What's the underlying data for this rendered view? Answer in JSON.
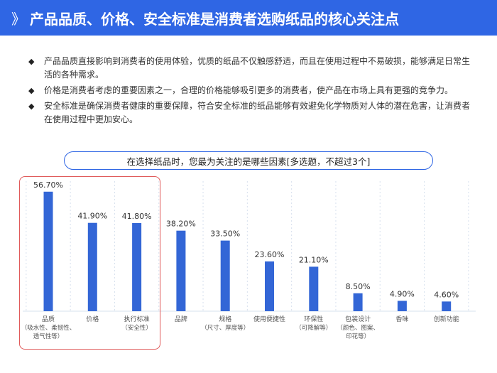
{
  "header": {
    "marker": "》",
    "title": "产品品质、价格、安全标准是消费者选购纸品的核心关注点"
  },
  "bullets": [
    {
      "icon": "diamond-bullet-icon",
      "symbol": "◆",
      "text": "产品品质直接影响到消费者的使用体验，优质的纸品不仅触感舒适，而且在使用过程中不易破损，能够满足日常生活的各种需求。"
    },
    {
      "icon": "diamond-bullet-icon",
      "symbol": "◆",
      "text": "价格是消费者考虑的重要因素之一，合理的价格能够吸引更多的消费者，使产品在市场上具有更强的竞争力。"
    },
    {
      "icon": "diamond-bullet-icon",
      "symbol": "◆",
      "text": "安全标准是确保消费者健康的重要保障，符合安全标准的纸品能够有效避免化学物质对人体的潜在危害，让消费者在使用过程中更加安心。"
    }
  ],
  "colors": {
    "header_bg": "#2f66e4",
    "bar": "#3366d6",
    "highlight": "#e05a5a",
    "gridline": "#d7e0ee"
  },
  "chart_data": {
    "type": "bar",
    "title": "在选择纸品时，您最为关注的是哪些因素[多选题，不超过3个]",
    "xlabel": "",
    "ylabel": "",
    "ylim": [
      0,
      60
    ],
    "grid": true,
    "categories": [
      [
        "品质",
        "（吸水性、柔韧性、",
        "透气性等）"
      ],
      [
        "价格"
      ],
      [
        "执行标准",
        "（安全性）"
      ],
      [
        "品牌"
      ],
      [
        "规格",
        "（尺寸、厚度等）"
      ],
      [
        "使用便捷性"
      ],
      [
        "环保性",
        "（可降解等）"
      ],
      [
        "包装设计",
        "（颜色、图案、",
        "印花等）"
      ],
      [
        "香味"
      ],
      [
        "创新功能"
      ]
    ],
    "values": [
      56.7,
      41.9,
      41.8,
      38.2,
      33.5,
      23.6,
      21.1,
      8.5,
      4.9,
      4.6
    ],
    "value_labels": [
      "56.70%",
      "41.90%",
      "41.80%",
      "38.20%",
      "33.50%",
      "23.60%",
      "21.10%",
      "8.50%",
      "4.90%",
      "4.60%"
    ],
    "highlighted_categories": [
      "品质",
      "价格",
      "执行标准"
    ]
  }
}
